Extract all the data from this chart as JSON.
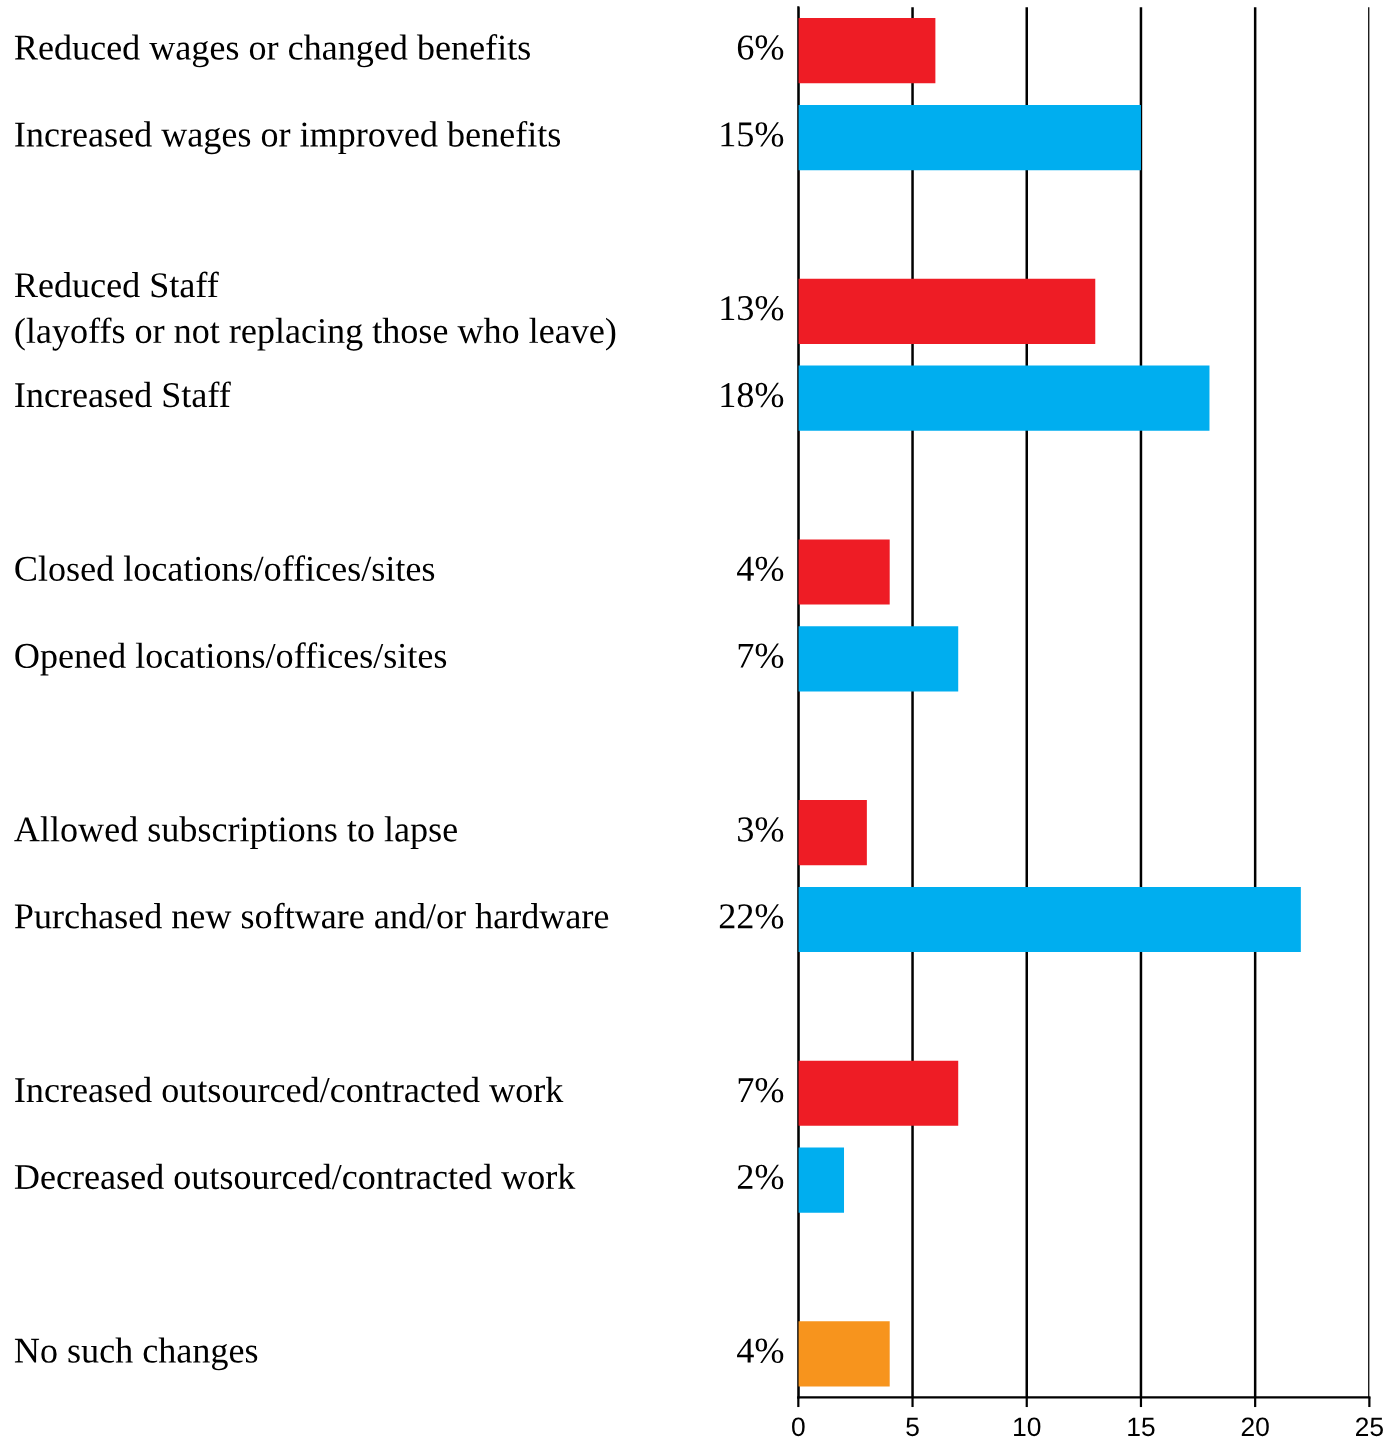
{
  "chart_data": {
    "type": "bar",
    "orientation": "horizontal",
    "categories": [
      "Reduced wages or changed benefits",
      "Increased wages or improved benefits",
      null,
      "Reduced Staff\n(layoffs or not replacing those who leave)",
      "Increased Staff",
      null,
      "Closed locations/offices/sites",
      "Opened locations/offices/sites",
      null,
      "Allowed subscriptions to lapse",
      "Purchased new software and/or hardware",
      null,
      "Increased outsourced/contracted work",
      "Decreased outsourced/contracted work",
      null,
      "No such changes"
    ],
    "values": [
      6,
      15,
      null,
      13,
      18,
      null,
      4,
      7,
      null,
      3,
      22,
      null,
      7,
      2,
      null,
      4
    ],
    "value_labels": [
      "6%",
      "15%",
      null,
      "13%",
      "18%",
      null,
      "4%",
      "7%",
      null,
      "3%",
      "22%",
      null,
      "7%",
      "2%",
      null,
      "4%"
    ],
    "colors": [
      "#ee1c25",
      "#00aeef",
      null,
      "#ee1c25",
      "#00aeef",
      null,
      "#ee1c25",
      "#00aeef",
      null,
      "#ee1c25",
      "#00aeef",
      null,
      "#ee1c25",
      "#00aeef",
      null,
      "#f7941d"
    ],
    "xlim": [
      0,
      25
    ],
    "xticks": [
      0,
      5,
      10,
      15,
      20,
      25
    ],
    "grid": "x",
    "legend": false
  }
}
